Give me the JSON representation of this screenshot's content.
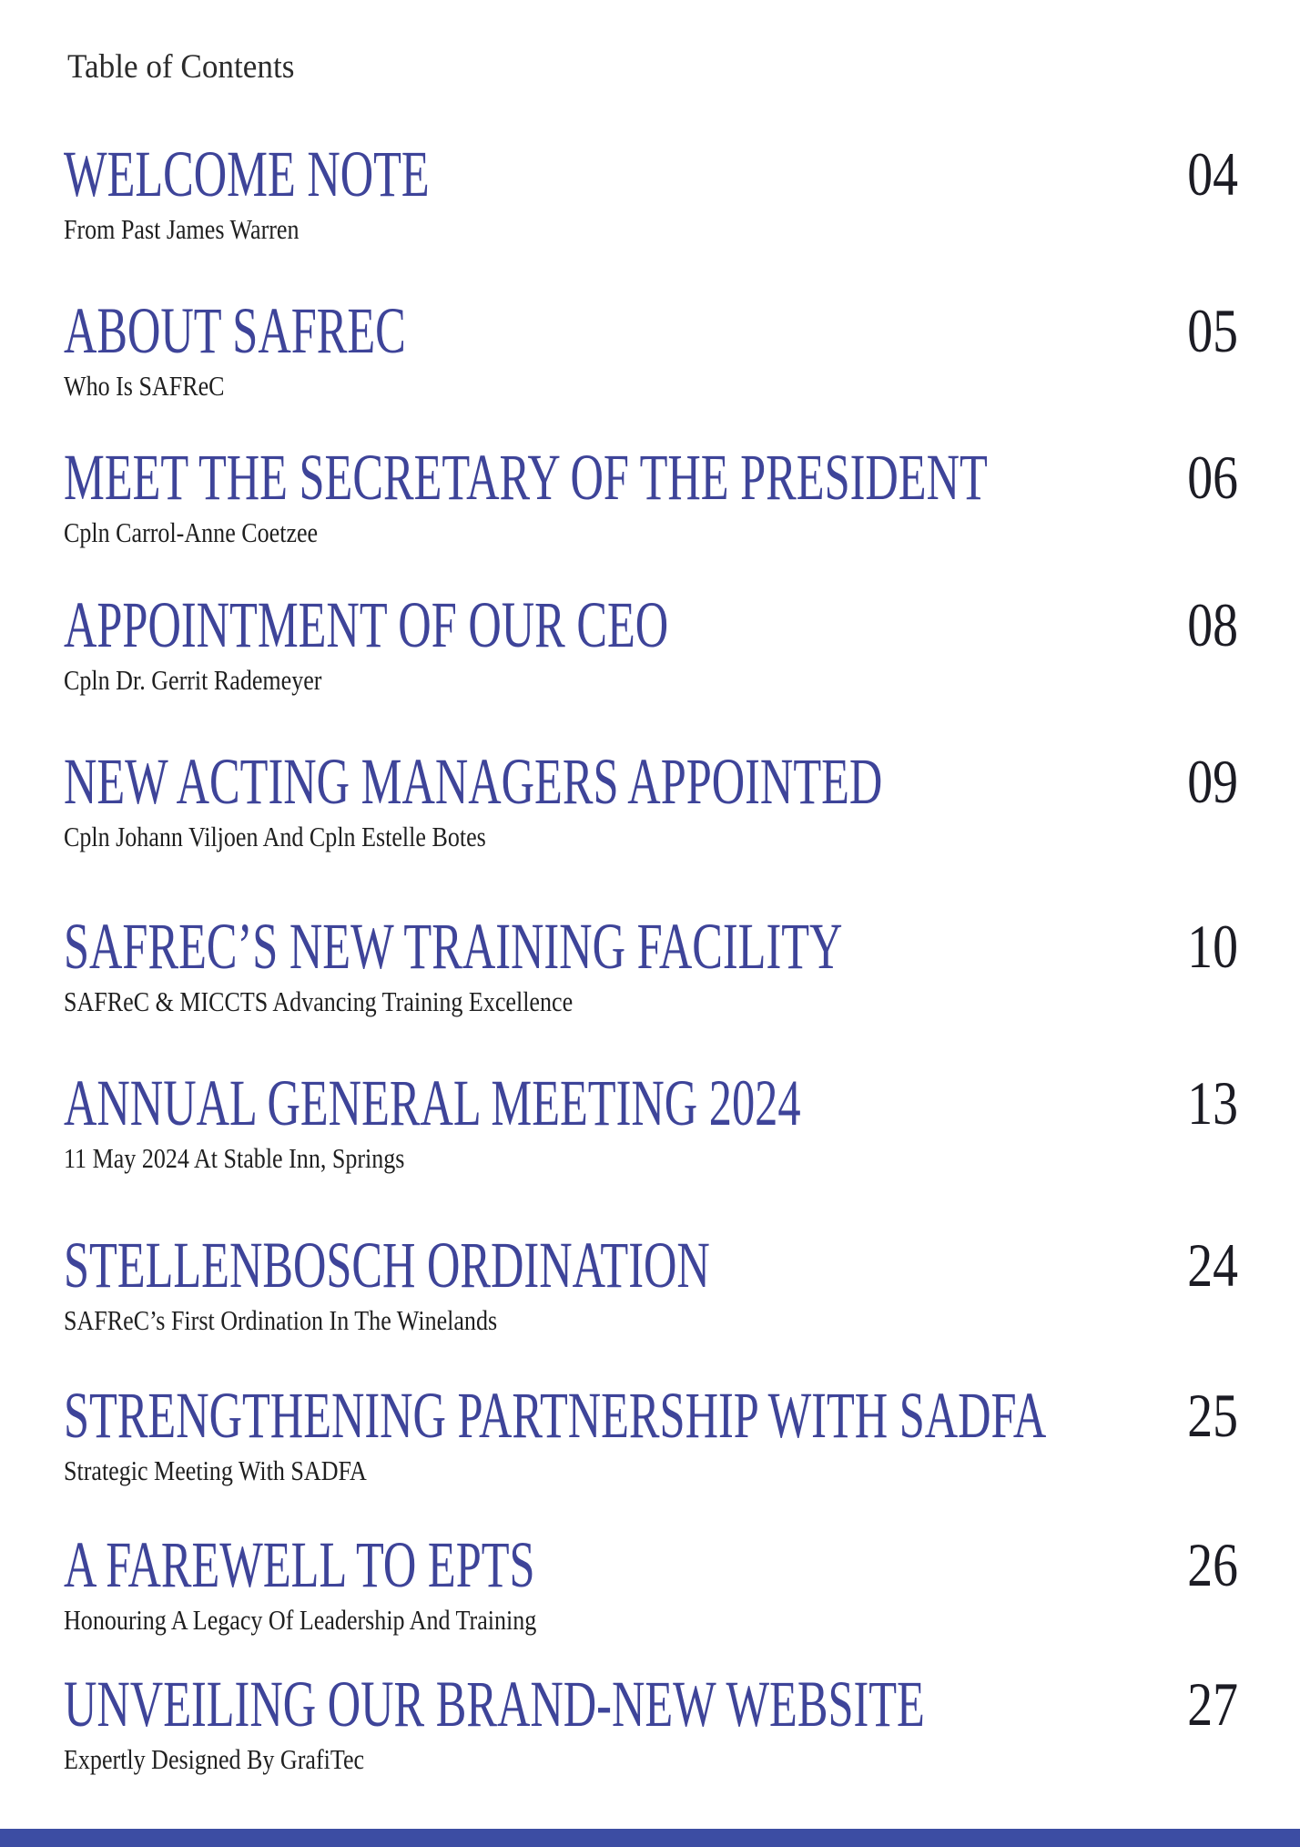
{
  "page": {
    "header": "Table of Contents",
    "accent_color": "#3e4499",
    "footer_bar_color": "#3c4da3"
  },
  "toc": {
    "entries": [
      {
        "title": "WELCOME NOTE",
        "subtitle": "From Past James Warren",
        "page": "04"
      },
      {
        "title": "ABOUT SAFREC",
        "subtitle": "Who Is SAFReC",
        "page": "05"
      },
      {
        "title": "MEET THE SECRETARY OF THE PRESIDENT",
        "subtitle": "Cpln Carrol-Anne Coetzee",
        "page": "06"
      },
      {
        "title": "APPOINTMENT OF OUR CEO",
        "subtitle": "Cpln Dr. Gerrit Rademeyer",
        "page": "08"
      },
      {
        "title": "NEW ACTING MANAGERS APPOINTED",
        "subtitle": "Cpln Johann Viljoen And Cpln Estelle Botes",
        "page": "09"
      },
      {
        "title": "SAFREC’S NEW TRAINING FACILITY",
        "subtitle": "SAFReC & MICCTS Advancing Training Excellence",
        "page": "10"
      },
      {
        "title": "ANNUAL GENERAL MEETING 2024",
        "subtitle": "11 May 2024 At Stable Inn, Springs",
        "page": "13"
      },
      {
        "title": "STELLENBOSCH ORDINATION",
        "subtitle": "SAFReC’s First Ordination In The Winelands",
        "page": "24"
      },
      {
        "title": "STRENGTHENING PARTNERSHIP WITH SADFA",
        "subtitle": "Strategic Meeting With SADFA",
        "page": "25"
      },
      {
        "title": "A FAREWELL TO EPTS",
        "subtitle": "Honouring A Legacy Of Leadership And Training",
        "page": "26"
      },
      {
        "title": "UNVEILING OUR BRAND-NEW WEBSITE",
        "subtitle": "Expertly Designed By GrafiTec",
        "page": "27"
      }
    ]
  }
}
